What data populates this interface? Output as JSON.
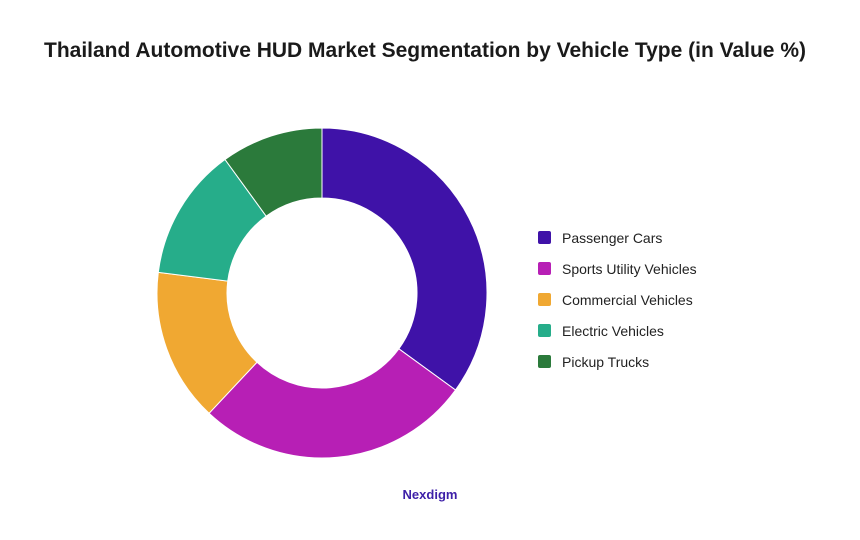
{
  "title": "Thailand Automotive HUD Market Segmentation by Vehicle Type (in Value %)",
  "brand": "Nexdigm",
  "chart_data": {
    "type": "pie",
    "style": "donut",
    "title": "Thailand Automotive HUD Market Segmentation by Vehicle Type (in Value %)",
    "categories": [
      "Passenger Cars",
      "Sports Utility Vehicles",
      "Commercial Vehicles",
      "Electric Vehicles",
      "Pickup Trucks"
    ],
    "values": [
      35,
      27,
      15,
      13,
      10
    ],
    "colors": [
      "#3f12a8",
      "#b71fb5",
      "#f0a832",
      "#26ad8a",
      "#2b7a3b"
    ],
    "legend_position": "right"
  }
}
